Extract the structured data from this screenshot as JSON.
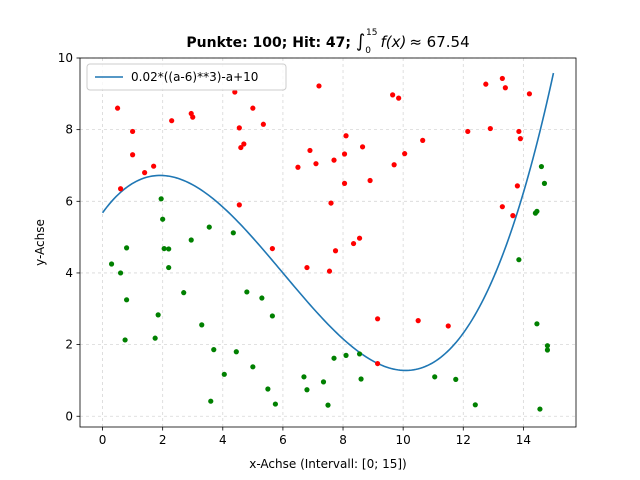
{
  "chart_data": {
    "type": "scatter",
    "title": {
      "text": "Punkte: 100; Hit: 47; ",
      "integral_lower": "0",
      "integral_upper": "15",
      "integrand": "f(x)",
      "approx_value": "≈ 67.54"
    },
    "xlabel": "x-Achse (Intervall: [0; 15])",
    "ylabel": "y-Achse",
    "xlim": [
      -0.75,
      15.75
    ],
    "ylim": [
      -0.3,
      10.0
    ],
    "x_ticks": [
      0,
      2,
      4,
      6,
      8,
      10,
      12,
      14
    ],
    "y_ticks": [
      0,
      2,
      4,
      6,
      8,
      10
    ],
    "grid": true,
    "grid_style": "dashed",
    "legend_position": "top-left",
    "curve": {
      "name": "0.02*((a-6)**3)-a+10",
      "color": "#1f77b4",
      "x_start": 0,
      "x_end": 15,
      "coef": 0.02,
      "shift": 6,
      "offset": 10
    },
    "hit_color": "#008000",
    "miss_color": "#ff0000",
    "points_miss": [
      [
        0.5,
        8.6
      ],
      [
        0.6,
        6.35
      ],
      [
        1.0,
        7.95
      ],
      [
        1.0,
        7.3
      ],
      [
        1.4,
        6.8
      ],
      [
        1.7,
        6.98
      ],
      [
        2.3,
        8.25
      ],
      [
        2.95,
        8.45
      ],
      [
        3.0,
        8.35
      ],
      [
        4.4,
        9.05
      ],
      [
        4.55,
        8.05
      ],
      [
        4.55,
        5.9
      ],
      [
        4.6,
        7.5
      ],
      [
        4.7,
        7.6
      ],
      [
        5.0,
        8.6
      ],
      [
        5.35,
        8.15
      ],
      [
        5.65,
        4.68
      ],
      [
        6.5,
        6.95
      ],
      [
        6.8,
        4.15
      ],
      [
        6.9,
        7.42
      ],
      [
        7.1,
        7.05
      ],
      [
        7.2,
        9.22
      ],
      [
        7.55,
        4.05
      ],
      [
        7.6,
        5.95
      ],
      [
        7.7,
        7.15
      ],
      [
        7.75,
        4.62
      ],
      [
        8.05,
        7.32
      ],
      [
        8.05,
        6.5
      ],
      [
        8.1,
        7.83
      ],
      [
        8.35,
        4.82
      ],
      [
        8.55,
        4.97
      ],
      [
        8.65,
        7.52
      ],
      [
        8.9,
        6.58
      ],
      [
        9.15,
        2.72
      ],
      [
        9.15,
        1.47
      ],
      [
        9.65,
        8.97
      ],
      [
        9.7,
        7.02
      ],
      [
        9.85,
        8.88
      ],
      [
        10.05,
        7.33
      ],
      [
        10.5,
        2.67
      ],
      [
        10.65,
        7.7
      ],
      [
        11.5,
        2.52
      ],
      [
        12.15,
        7.95
      ],
      [
        12.75,
        9.27
      ],
      [
        12.9,
        8.03
      ],
      [
        13.3,
        9.43
      ],
      [
        13.3,
        5.85
      ],
      [
        13.4,
        9.17
      ],
      [
        13.65,
        5.6
      ],
      [
        13.8,
        6.43
      ],
      [
        13.85,
        7.95
      ],
      [
        13.9,
        7.75
      ],
      [
        14.2,
        9.0
      ]
    ],
    "points_hit": [
      [
        0.3,
        4.25
      ],
      [
        0.6,
        4.0
      ],
      [
        0.75,
        2.13
      ],
      [
        0.8,
        4.7
      ],
      [
        0.8,
        3.25
      ],
      [
        1.75,
        2.18
      ],
      [
        1.85,
        2.83
      ],
      [
        1.95,
        6.07
      ],
      [
        2.0,
        5.5
      ],
      [
        2.05,
        4.68
      ],
      [
        2.2,
        4.15
      ],
      [
        2.2,
        4.67
      ],
      [
        2.7,
        3.45
      ],
      [
        2.95,
        4.92
      ],
      [
        3.3,
        2.55
      ],
      [
        3.55,
        5.28
      ],
      [
        3.6,
        0.42
      ],
      [
        3.7,
        1.86
      ],
      [
        4.05,
        1.17
      ],
      [
        4.35,
        5.12
      ],
      [
        4.45,
        1.8
      ],
      [
        4.8,
        3.47
      ],
      [
        5.0,
        1.38
      ],
      [
        5.3,
        3.3
      ],
      [
        5.5,
        0.76
      ],
      [
        5.65,
        2.8
      ],
      [
        5.75,
        0.34
      ],
      [
        6.7,
        1.1
      ],
      [
        6.8,
        0.74
      ],
      [
        7.35,
        0.96
      ],
      [
        7.5,
        0.31
      ],
      [
        7.7,
        1.62
      ],
      [
        8.1,
        1.7
      ],
      [
        8.55,
        1.74
      ],
      [
        8.6,
        1.04
      ],
      [
        11.05,
        1.1
      ],
      [
        11.75,
        1.03
      ],
      [
        12.4,
        0.32
      ],
      [
        13.85,
        4.37
      ],
      [
        14.4,
        5.67
      ],
      [
        14.45,
        2.58
      ],
      [
        14.45,
        5.72
      ],
      [
        14.55,
        0.2
      ],
      [
        14.6,
        6.97
      ],
      [
        14.7,
        6.5
      ],
      [
        14.8,
        1.85
      ],
      [
        14.8,
        1.97
      ]
    ]
  }
}
